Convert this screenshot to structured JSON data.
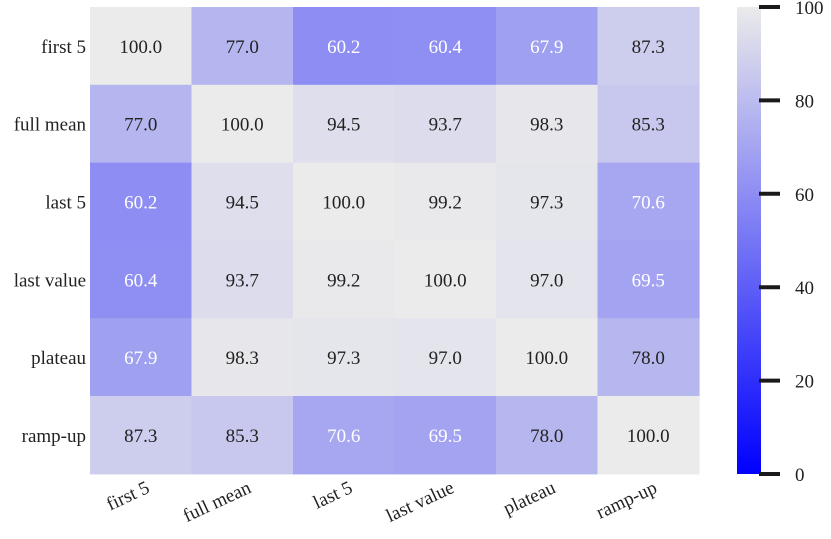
{
  "chart_data": {
    "type": "heatmap",
    "title": "",
    "xlabel": "",
    "ylabel": "",
    "x_categories": [
      "first 5",
      "full mean",
      "last 5",
      "last value",
      "plateau",
      "ramp-up"
    ],
    "y_categories": [
      "first 5",
      "full mean",
      "last 5",
      "last value",
      "plateau",
      "ramp-up"
    ],
    "values": [
      [
        100.0,
        77.0,
        60.2,
        60.4,
        67.9,
        87.3
      ],
      [
        77.0,
        100.0,
        94.5,
        93.7,
        98.3,
        85.3
      ],
      [
        60.2,
        94.5,
        100.0,
        99.2,
        97.3,
        70.6
      ],
      [
        60.4,
        93.7,
        99.2,
        100.0,
        97.0,
        69.5
      ],
      [
        67.9,
        98.3,
        97.3,
        97.0,
        100.0,
        78.0
      ],
      [
        87.3,
        85.3,
        70.6,
        69.5,
        78.0,
        100.0
      ]
    ],
    "colorbar": {
      "range": [
        0,
        100
      ],
      "ticks": [
        0,
        20,
        40,
        60,
        80,
        100
      ],
      "low_color": "#0000ff",
      "high_color": "#ebebeb"
    },
    "x_tick_rotation": "angled",
    "grid": false
  }
}
